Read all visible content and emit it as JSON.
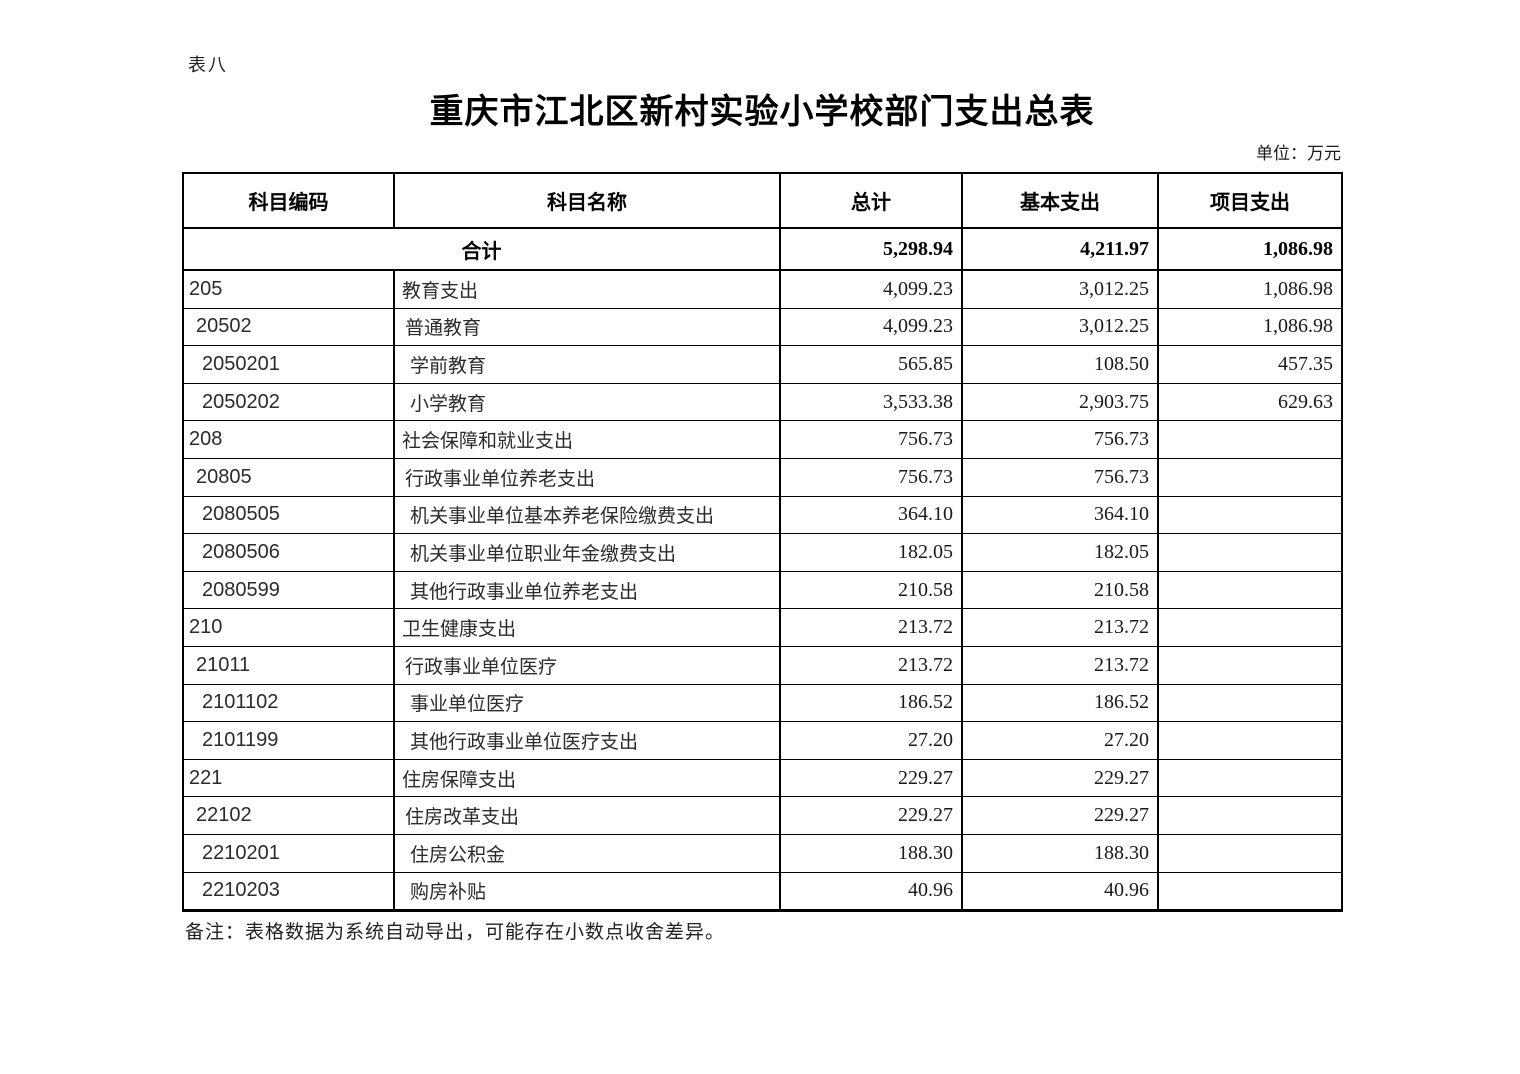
{
  "page": {
    "sheet_label": "表八",
    "title": "重庆市江北区新村实验小学校部门支出总表",
    "unit_label": "单位：万元",
    "note": "备注：表格数据为系统自动导出，可能存在小数点收舍差异。"
  },
  "table": {
    "headers": {
      "code": "科目编码",
      "name": "科目名称",
      "total": "总计",
      "basic": "基本支出",
      "project": "项目支出"
    },
    "summary": {
      "label": "合计",
      "total": "5,298.94",
      "basic": "4,211.97",
      "project": "1,086.98"
    },
    "rows": [
      {
        "code": "205",
        "name": "教育支出",
        "total": "4,099.23",
        "basic": "3,012.25",
        "project": "1,086.98",
        "level": 1
      },
      {
        "code": "20502",
        "name": "普通教育",
        "total": "4,099.23",
        "basic": "3,012.25",
        "project": "1,086.98",
        "level": 2
      },
      {
        "code": "2050201",
        "name": "学前教育",
        "total": "565.85",
        "basic": "108.50",
        "project": "457.35",
        "level": 3
      },
      {
        "code": "2050202",
        "name": "小学教育",
        "total": "3,533.38",
        "basic": "2,903.75",
        "project": "629.63",
        "level": 3
      },
      {
        "code": "208",
        "name": "社会保障和就业支出",
        "total": "756.73",
        "basic": "756.73",
        "project": "",
        "level": 1
      },
      {
        "code": "20805",
        "name": "行政事业单位养老支出",
        "total": "756.73",
        "basic": "756.73",
        "project": "",
        "level": 2
      },
      {
        "code": "2080505",
        "name": "机关事业单位基本养老保险缴费支出",
        "total": "364.10",
        "basic": "364.10",
        "project": "",
        "level": 3
      },
      {
        "code": "2080506",
        "name": "机关事业单位职业年金缴费支出",
        "total": "182.05",
        "basic": "182.05",
        "project": "",
        "level": 3
      },
      {
        "code": "2080599",
        "name": "其他行政事业单位养老支出",
        "total": "210.58",
        "basic": "210.58",
        "project": "",
        "level": 3
      },
      {
        "code": "210",
        "name": "卫生健康支出",
        "total": "213.72",
        "basic": "213.72",
        "project": "",
        "level": 1
      },
      {
        "code": "21011",
        "name": "行政事业单位医疗",
        "total": "213.72",
        "basic": "213.72",
        "project": "",
        "level": 2
      },
      {
        "code": "2101102",
        "name": "事业单位医疗",
        "total": "186.52",
        "basic": "186.52",
        "project": "",
        "level": 3
      },
      {
        "code": "2101199",
        "name": "其他行政事业单位医疗支出",
        "total": "27.20",
        "basic": "27.20",
        "project": "",
        "level": 3
      },
      {
        "code": "221",
        "name": "住房保障支出",
        "total": "229.27",
        "basic": "229.27",
        "project": "",
        "level": 1
      },
      {
        "code": "22102",
        "name": "住房改革支出",
        "total": "229.27",
        "basic": "229.27",
        "project": "",
        "level": 2
      },
      {
        "code": "2210201",
        "name": "住房公积金",
        "total": "188.30",
        "basic": "188.30",
        "project": "",
        "level": 3
      },
      {
        "code": "2210203",
        "name": "购房补贴",
        "total": "40.96",
        "basic": "40.96",
        "project": "",
        "level": 3
      }
    ]
  }
}
